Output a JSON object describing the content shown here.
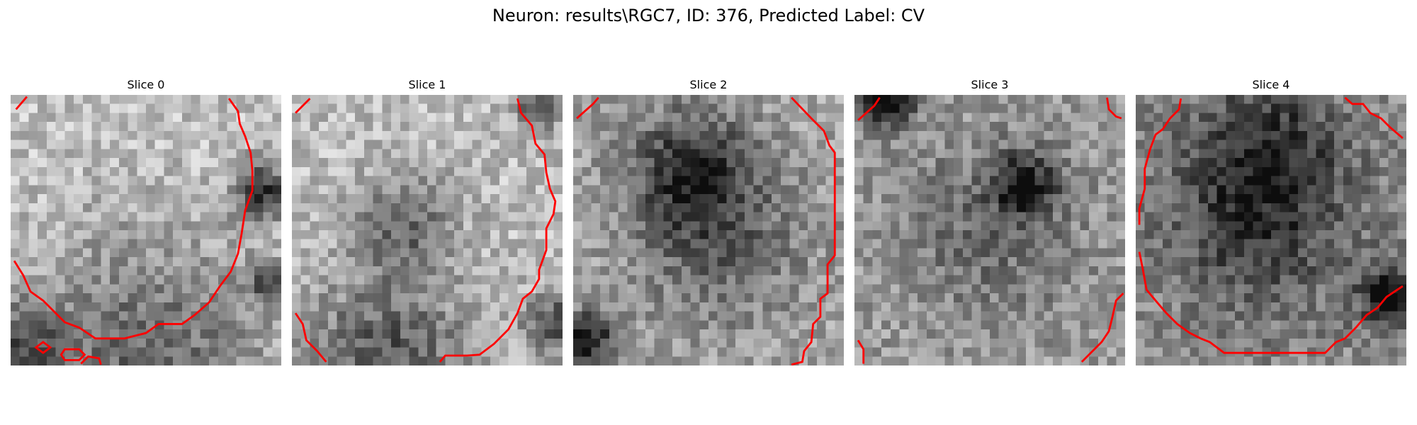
{
  "figure": {
    "title": "Neuron: results\\RGC7, ID: 376, Predicted Label: CV"
  },
  "panels": [
    {
      "title": "Slice 0",
      "seed": 11,
      "dark_spots": [
        [
          0.93,
          0.35,
          0.1,
          0.55
        ],
        [
          0.97,
          0.7,
          0.08,
          0.45
        ],
        [
          0.5,
          0.96,
          0.45,
          0.35
        ],
        [
          0.05,
          0.92,
          0.15,
          0.35
        ]
      ],
      "base": 0.76
    },
    {
      "title": "Slice 1",
      "seed": 23,
      "dark_spots": [
        [
          0.42,
          0.48,
          0.18,
          0.32
        ],
        [
          0.97,
          0.85,
          0.1,
          0.5
        ],
        [
          0.35,
          0.97,
          0.3,
          0.4
        ],
        [
          0.9,
          0.05,
          0.08,
          0.4
        ]
      ],
      "base": 0.74
    },
    {
      "title": "Slice 2",
      "seed": 37,
      "dark_spots": [
        [
          0.43,
          0.28,
          0.22,
          0.45
        ],
        [
          0.05,
          0.9,
          0.1,
          0.55
        ],
        [
          0.55,
          0.55,
          0.3,
          0.25
        ]
      ],
      "base": 0.64
    },
    {
      "title": "Slice 3",
      "seed": 53,
      "dark_spots": [
        [
          0.63,
          0.33,
          0.12,
          0.45
        ],
        [
          0.12,
          0.02,
          0.1,
          0.6
        ],
        [
          0.5,
          0.5,
          0.35,
          0.2
        ]
      ],
      "base": 0.62
    },
    {
      "title": "Slice 4",
      "seed": 71,
      "dark_spots": [
        [
          0.45,
          0.45,
          0.35,
          0.35
        ],
        [
          0.95,
          0.75,
          0.12,
          0.5
        ],
        [
          0.5,
          0.15,
          0.25,
          0.25
        ]
      ],
      "base": 0.56
    }
  ],
  "colors": {
    "contour": "#ff0000"
  }
}
